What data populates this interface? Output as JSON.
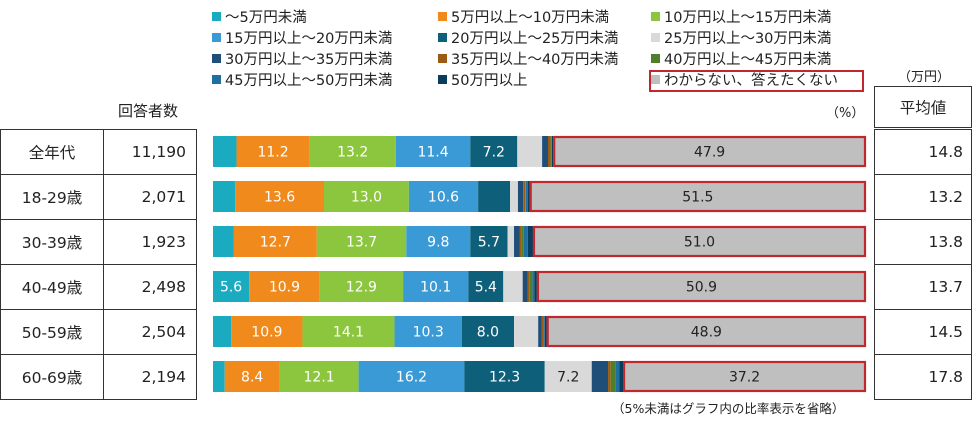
{
  "header": {
    "respondents_label": "回答者数",
    "unit_percent": "（%）",
    "unit_man_yen": "（万円）",
    "average_label": "平均値"
  },
  "footnote": "（5%未満はグラフ内の比率表示を省略）",
  "colors": {
    "cat0": "#1aabc0",
    "cat1": "#f08a1c",
    "cat2": "#8cc63f",
    "cat3": "#3a9ad6",
    "cat4": "#0e5f7a",
    "cat5": "#d9d9d9",
    "cat6": "#1f4e79",
    "cat7": "#9c5b12",
    "cat8": "#4e7f2a",
    "cat9": "#1f6fa3",
    "cat10": "#0a3d5c",
    "cat11": "#bfbfbf",
    "highlight": "#c0282d"
  },
  "chart_data": {
    "type": "bar",
    "orientation": "horizontal-stacked-100",
    "unit": "%",
    "categories": [
      "全年代",
      "18-29歳",
      "30-39歳",
      "40-49歳",
      "50-59歳",
      "60-69歳"
    ],
    "respondents": [
      "11,190",
      "2,071",
      "1,923",
      "2,498",
      "2,504",
      "2,194"
    ],
    "averages": [
      "14.8",
      "13.2",
      "13.8",
      "13.7",
      "14.5",
      "17.8"
    ],
    "label_threshold": 5,
    "series": [
      {
        "name": "～5万円未満",
        "values": [
          3.6,
          3.4,
          3.2,
          5.6,
          2.8,
          1.8
        ]
      },
      {
        "name": "5万円以上～10万円未満",
        "values": [
          11.2,
          13.6,
          12.7,
          10.9,
          10.9,
          8.4
        ]
      },
      {
        "name": "10万円以上～15万円未満",
        "values": [
          13.2,
          13.0,
          13.7,
          12.9,
          14.1,
          12.1
        ]
      },
      {
        "name": "15万円以上～20万円未満",
        "values": [
          11.4,
          10.6,
          9.8,
          10.1,
          10.3,
          16.2
        ]
      },
      {
        "name": "20万円以上～25万円未満",
        "values": [
          7.2,
          4.9,
          5.7,
          5.4,
          8.0,
          12.3
        ]
      },
      {
        "name": "25万円以上～30万円未満",
        "values": [
          3.8,
          1.2,
          1.0,
          3.0,
          3.7,
          7.2
        ]
      },
      {
        "name": "30万円以上～35万円未満",
        "values": [
          0.9,
          0.8,
          0.9,
          0.8,
          0.5,
          2.5
        ]
      },
      {
        "name": "35万円以上～40万円未満",
        "values": [
          0.4,
          0.3,
          0.3,
          0.3,
          0.3,
          0.4
        ]
      },
      {
        "name": "40万円以上～45万円未満",
        "values": [
          0.1,
          0.1,
          0.3,
          0.4,
          0.1,
          0.7
        ]
      },
      {
        "name": "45万円以上～50万円未満",
        "values": [
          0.1,
          0.3,
          0.6,
          0.3,
          0.1,
          0.6
        ]
      },
      {
        "name": "50万円以上",
        "values": [
          0.2,
          0.3,
          0.8,
          0.4,
          0.3,
          0.6
        ]
      },
      {
        "name": "わからない、答えたくない",
        "values": [
          47.9,
          51.5,
          51.0,
          50.9,
          48.9,
          37.2
        ]
      }
    ],
    "highlighted_series": "わからない、答えたくない",
    "xlim": [
      0,
      100
    ]
  }
}
